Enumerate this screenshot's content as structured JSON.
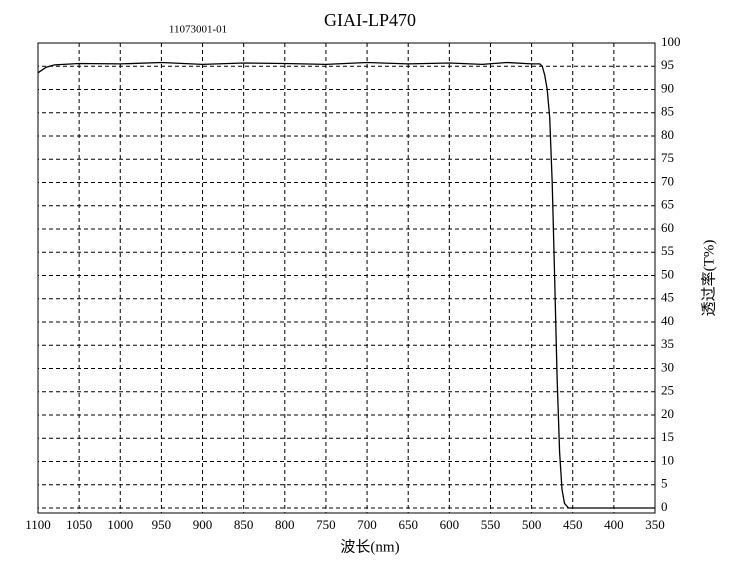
{
  "chart_data": {
    "type": "line",
    "title": "GIAI-LP470",
    "subtitle": "11073001-01",
    "x_label": "波长(nm)",
    "y_label": "透过率(T%)",
    "mirrored": true,
    "grid": true,
    "xlim": [
      350,
      1100
    ],
    "ylim": [
      0,
      100
    ],
    "xticks": [
      350,
      400,
      450,
      500,
      550,
      600,
      650,
      700,
      750,
      800,
      850,
      900,
      950,
      1000,
      1050,
      1100
    ],
    "yticks": [
      0,
      5,
      10,
      15,
      20,
      25,
      30,
      35,
      40,
      45,
      50,
      55,
      60,
      65,
      70,
      75,
      80,
      85,
      90,
      95,
      100
    ],
    "series": [
      {
        "name": "GIAI-LP470",
        "color": "#000000",
        "x": [
          350,
          400,
          450,
          455,
          460,
          463,
          466,
          469,
          472,
          475,
          478,
          481,
          484,
          487,
          490,
          500,
          530,
          560,
          600,
          650,
          700,
          750,
          800,
          850,
          900,
          950,
          1000,
          1050,
          1080,
          1090,
          1100
        ],
        "values": [
          0,
          0,
          0,
          0,
          1,
          4,
          12,
          28,
          50,
          70,
          84,
          90,
          93,
          95,
          95.5,
          95.5,
          95.8,
          95.4,
          95.7,
          95.5,
          95.8,
          95.4,
          95.6,
          95.7,
          95.4,
          95.8,
          95.5,
          95.6,
          95.3,
          94.8,
          93.6
        ]
      }
    ]
  }
}
